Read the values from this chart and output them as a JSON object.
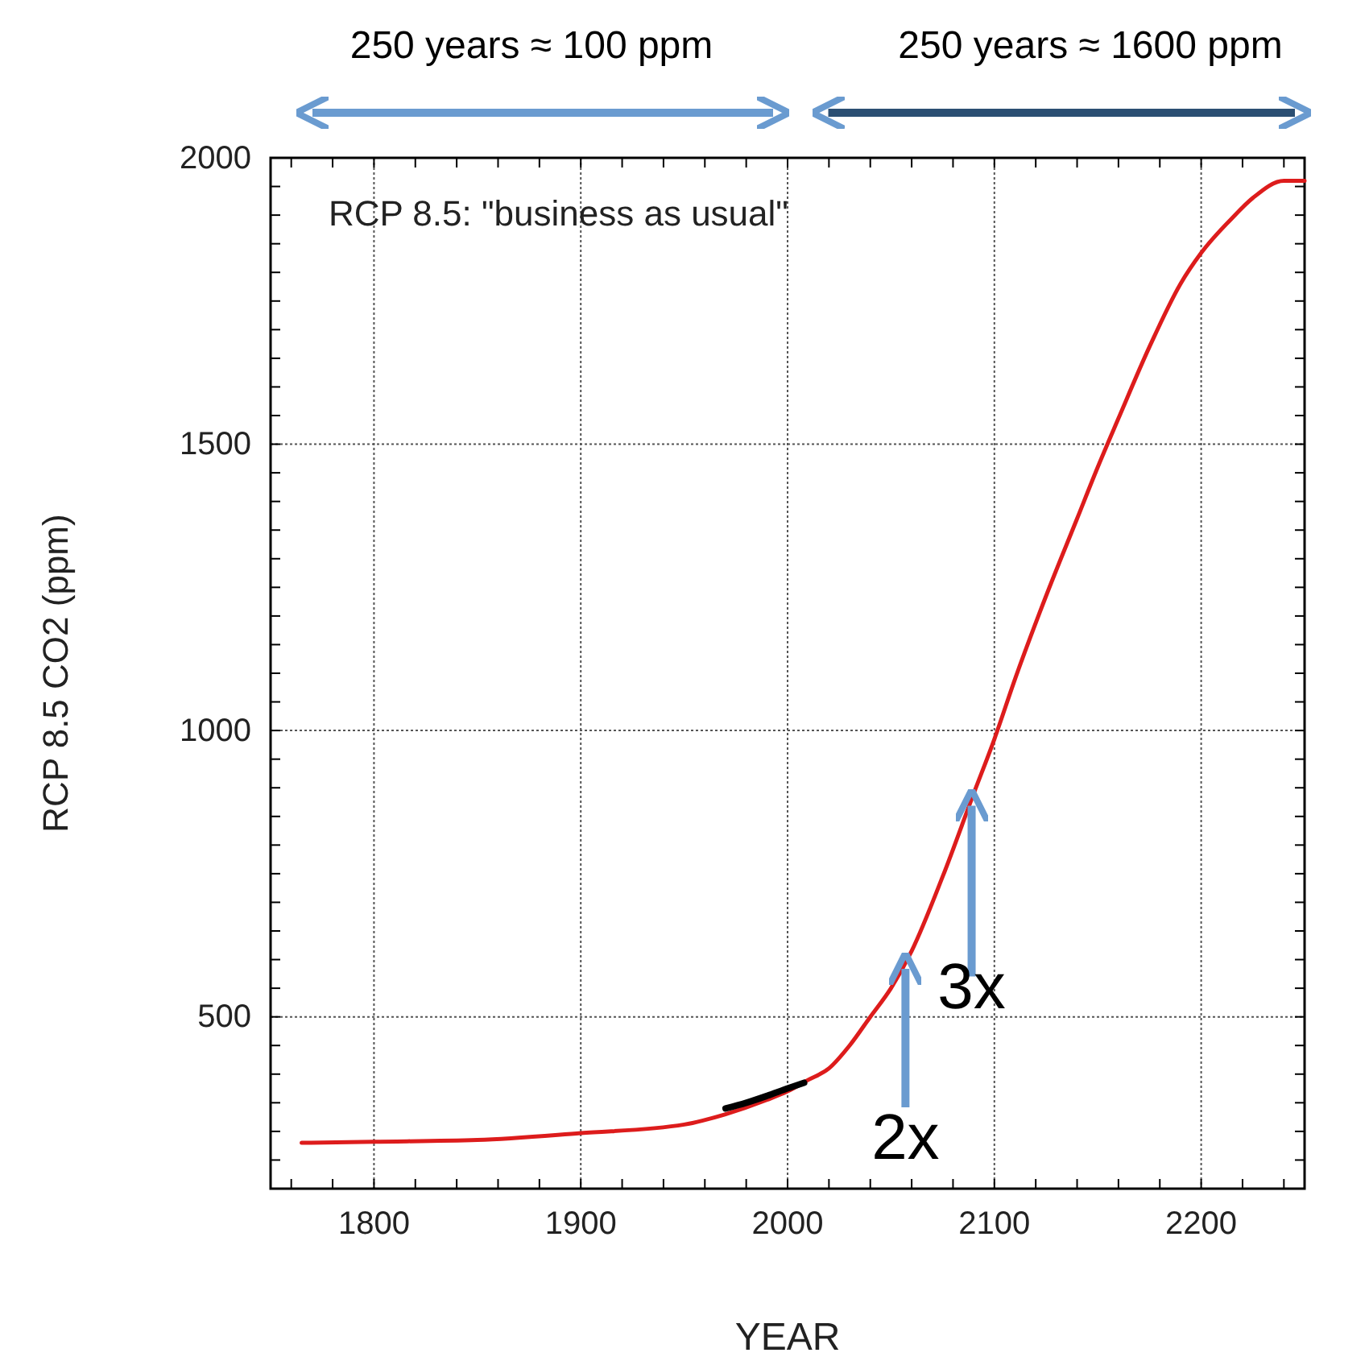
{
  "chart_data": {
    "type": "line",
    "title": "RCP 8.5: \"business as usual\"",
    "xlabel": "YEAR",
    "ylabel": "RCP 8.5 CO2 (ppm)",
    "xlim": [
      1750,
      2250
    ],
    "ylim": [
      200,
      2000
    ],
    "xticks": [
      {
        "value": 1760,
        "label": null
      },
      {
        "value": 1780,
        "label": null
      },
      1800,
      {
        "value": 1820,
        "label": null
      },
      {
        "value": 1840,
        "label": null
      },
      {
        "value": 1860,
        "label": null
      },
      {
        "value": 1880,
        "label": null
      },
      1900,
      {
        "value": 1920,
        "label": null
      },
      {
        "value": 1940,
        "label": null
      },
      {
        "value": 1960,
        "label": null
      },
      {
        "value": 1980,
        "label": null
      },
      2000,
      {
        "value": 2020,
        "label": null
      },
      {
        "value": 2040,
        "label": null
      },
      {
        "value": 2060,
        "label": null
      },
      {
        "value": 2080,
        "label": null
      },
      2100,
      {
        "value": 2120,
        "label": null
      },
      {
        "value": 2140,
        "label": null
      },
      {
        "value": 2160,
        "label": null
      },
      {
        "value": 2180,
        "label": null
      },
      2200,
      {
        "value": 2220,
        "label": null
      },
      {
        "value": 2240,
        "label": null
      }
    ],
    "yticks": [
      {
        "value": 250,
        "label": null
      },
      {
        "value": 300,
        "label": null
      },
      {
        "value": 350,
        "label": null
      },
      {
        "value": 400,
        "label": null
      },
      {
        "value": 450,
        "label": null
      },
      500,
      {
        "value": 550,
        "label": null
      },
      {
        "value": 600,
        "label": null
      },
      {
        "value": 650,
        "label": null
      },
      {
        "value": 700,
        "label": null
      },
      {
        "value": 750,
        "label": null
      },
      {
        "value": 800,
        "label": null
      },
      {
        "value": 850,
        "label": null
      },
      {
        "value": 900,
        "label": null
      },
      {
        "value": 950,
        "label": null
      },
      1000,
      {
        "value": 1050,
        "label": null
      },
      {
        "value": 1100,
        "label": null
      },
      {
        "value": 1150,
        "label": null
      },
      {
        "value": 1200,
        "label": null
      },
      {
        "value": 1250,
        "label": null
      },
      {
        "value": 1300,
        "label": null
      },
      {
        "value": 1350,
        "label": null
      },
      {
        "value": 1400,
        "label": null
      },
      {
        "value": 1450,
        "label": null
      },
      1500,
      {
        "value": 1550,
        "label": null
      },
      {
        "value": 1600,
        "label": null
      },
      {
        "value": 1650,
        "label": null
      },
      {
        "value": 1700,
        "label": null
      },
      {
        "value": 1750,
        "label": null
      },
      {
        "value": 1800,
        "label": null
      },
      {
        "value": 1850,
        "label": null
      },
      {
        "value": 1900,
        "label": null
      },
      {
        "value": 1950,
        "label": null
      },
      2000
    ],
    "grid": true,
    "line_style": "solid",
    "series": [
      {
        "color": "#dd1c1c",
        "x": [
          1765,
          1800,
          1850,
          1900,
          1950,
          1970,
          1990,
          2000,
          2010,
          2020,
          2030,
          2040,
          2050,
          2060,
          2075,
          2090,
          2100,
          2110,
          2125,
          2140,
          2150,
          2160,
          2175,
          2190,
          2200,
          2215,
          2225,
          2240,
          2250
        ],
        "values": [
          280,
          282,
          285,
          297,
          312,
          330,
          355,
          370,
          390,
          410,
          450,
          500,
          550,
          615,
          745,
          890,
          985,
          1090,
          1235,
          1370,
          1460,
          1545,
          1670,
          1780,
          1834,
          1895,
          1930,
          1960,
          1960
        ]
      },
      {
        "color": "#000000",
        "x": [
          1970,
          1980,
          1990,
          2000,
          2008
        ],
        "values": [
          340,
          350,
          362,
          375,
          385
        ]
      }
    ],
    "annotations": [
      {
        "text": "2x",
        "x": 2057,
        "y": 595
      },
      {
        "text": "3x",
        "x": 2089,
        "y": 880
      },
      "250 years ≈ 100 ppm",
      "250 years ≈ 1600 ppm"
    ]
  }
}
